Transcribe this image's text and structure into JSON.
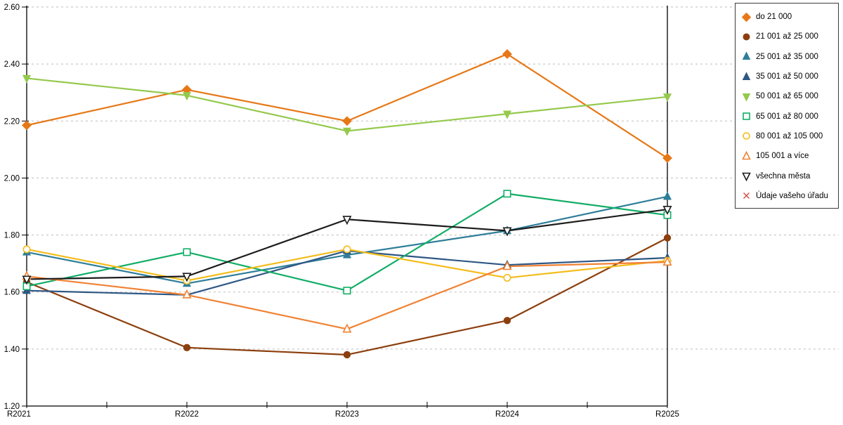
{
  "chart_data": {
    "type": "line",
    "title": "",
    "xlabel": "",
    "ylabel": "",
    "categories": [
      "R2021",
      "R2022",
      "R2023",
      "R2024",
      "R2025"
    ],
    "y_axis": {
      "min": 1.2,
      "max": 2.6,
      "step": 0.2,
      "tick_labels": [
        "1.20",
        "1.40",
        "1.60",
        "1.80",
        "2.00",
        "2.20",
        "2.40",
        "2.60"
      ]
    },
    "grid": "horizontal-dashed",
    "legend_position": "top-right",
    "series": [
      {
        "name": "do 21 000",
        "marker": "diamond",
        "filled": true,
        "color": "#E67817",
        "values": [
          2.185,
          2.31,
          2.2,
          2.435,
          2.07
        ]
      },
      {
        "name": "21 001 až 25 000",
        "marker": "circle",
        "filled": true,
        "color": "#8C3F0E",
        "values": [
          1.635,
          1.405,
          1.38,
          1.5,
          1.79
        ]
      },
      {
        "name": "25 001 až 35 000",
        "marker": "triangle-up",
        "filled": true,
        "color": "#2E7E99",
        "values": [
          1.74,
          1.63,
          1.73,
          1.815,
          1.935
        ]
      },
      {
        "name": "35 001 až 50 000",
        "marker": "triangle-up",
        "filled": true,
        "color": "#2E5784",
        "values": [
          1.605,
          1.59,
          1.745,
          1.695,
          1.72
        ]
      },
      {
        "name": "50 001 až 65 000",
        "marker": "triangle-down",
        "filled": true,
        "color": "#94C94C",
        "values": [
          2.35,
          2.29,
          2.165,
          2.225,
          2.285
        ]
      },
      {
        "name": "65 001 až 80 000",
        "marker": "square",
        "filled": false,
        "color": "#12AD66",
        "values": [
          1.62,
          1.74,
          1.605,
          1.945,
          1.87
        ]
      },
      {
        "name": "80 001 až 105 000",
        "marker": "circle",
        "filled": false,
        "color": "#F4BC1C",
        "values": [
          1.75,
          1.64,
          1.75,
          1.65,
          1.71
        ]
      },
      {
        "name": "105 001 a více",
        "marker": "triangle-up",
        "filled": false,
        "color": "#F08233",
        "values": [
          1.655,
          1.59,
          1.47,
          1.69,
          1.705
        ]
      },
      {
        "name": "všechna města",
        "marker": "triangle-down",
        "filled": false,
        "color": "#1C1C1C",
        "values": [
          1.645,
          1.655,
          1.855,
          1.815,
          1.89
        ]
      },
      {
        "name": "Údaje vašeho úřadu",
        "marker": "x",
        "filled": false,
        "color": "#D24A43",
        "values": []
      }
    ]
  }
}
